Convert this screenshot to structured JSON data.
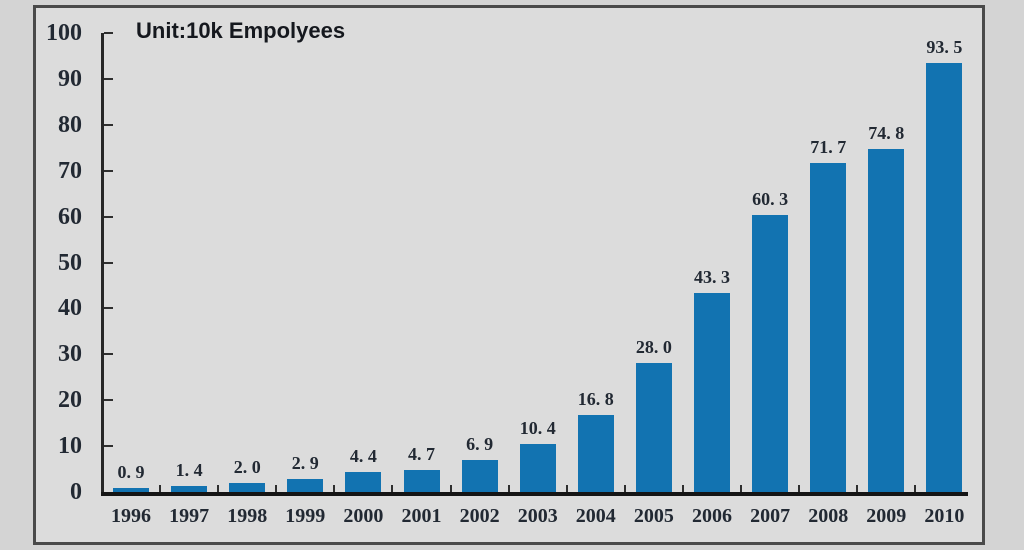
{
  "chart_data": {
    "type": "bar",
    "title": "Unit:10k Empolyees",
    "categories": [
      "1996",
      "1997",
      "1998",
      "1999",
      "2000",
      "2001",
      "2002",
      "2003",
      "2004",
      "2005",
      "2006",
      "2007",
      "2008",
      "2009",
      "2010"
    ],
    "values": [
      0.9,
      1.4,
      2.0,
      2.9,
      4.4,
      4.7,
      6.9,
      10.4,
      16.8,
      28.0,
      43.3,
      60.3,
      71.7,
      74.8,
      93.5
    ],
    "value_labels": [
      "0. 9",
      "1. 4",
      "2. 0",
      "2. 9",
      "4. 4",
      "4. 7",
      "6. 9",
      "10. 4",
      "16. 8",
      "28. 0",
      "43. 3",
      "60. 3",
      "71. 7",
      "74. 8",
      "93. 5"
    ],
    "xlabel": "",
    "ylabel": "",
    "ylim": [
      0,
      100
    ],
    "y_ticks": [
      0,
      10,
      20,
      30,
      40,
      50,
      60,
      70,
      80,
      90,
      100
    ],
    "grid": false,
    "legend_position": "none",
    "bar_color": "#1273b1",
    "text_color": "#222933",
    "frame_background": "#dcdcdc",
    "page_background": "#d4d4d4",
    "frame_border_color": "#4a4a4a"
  }
}
